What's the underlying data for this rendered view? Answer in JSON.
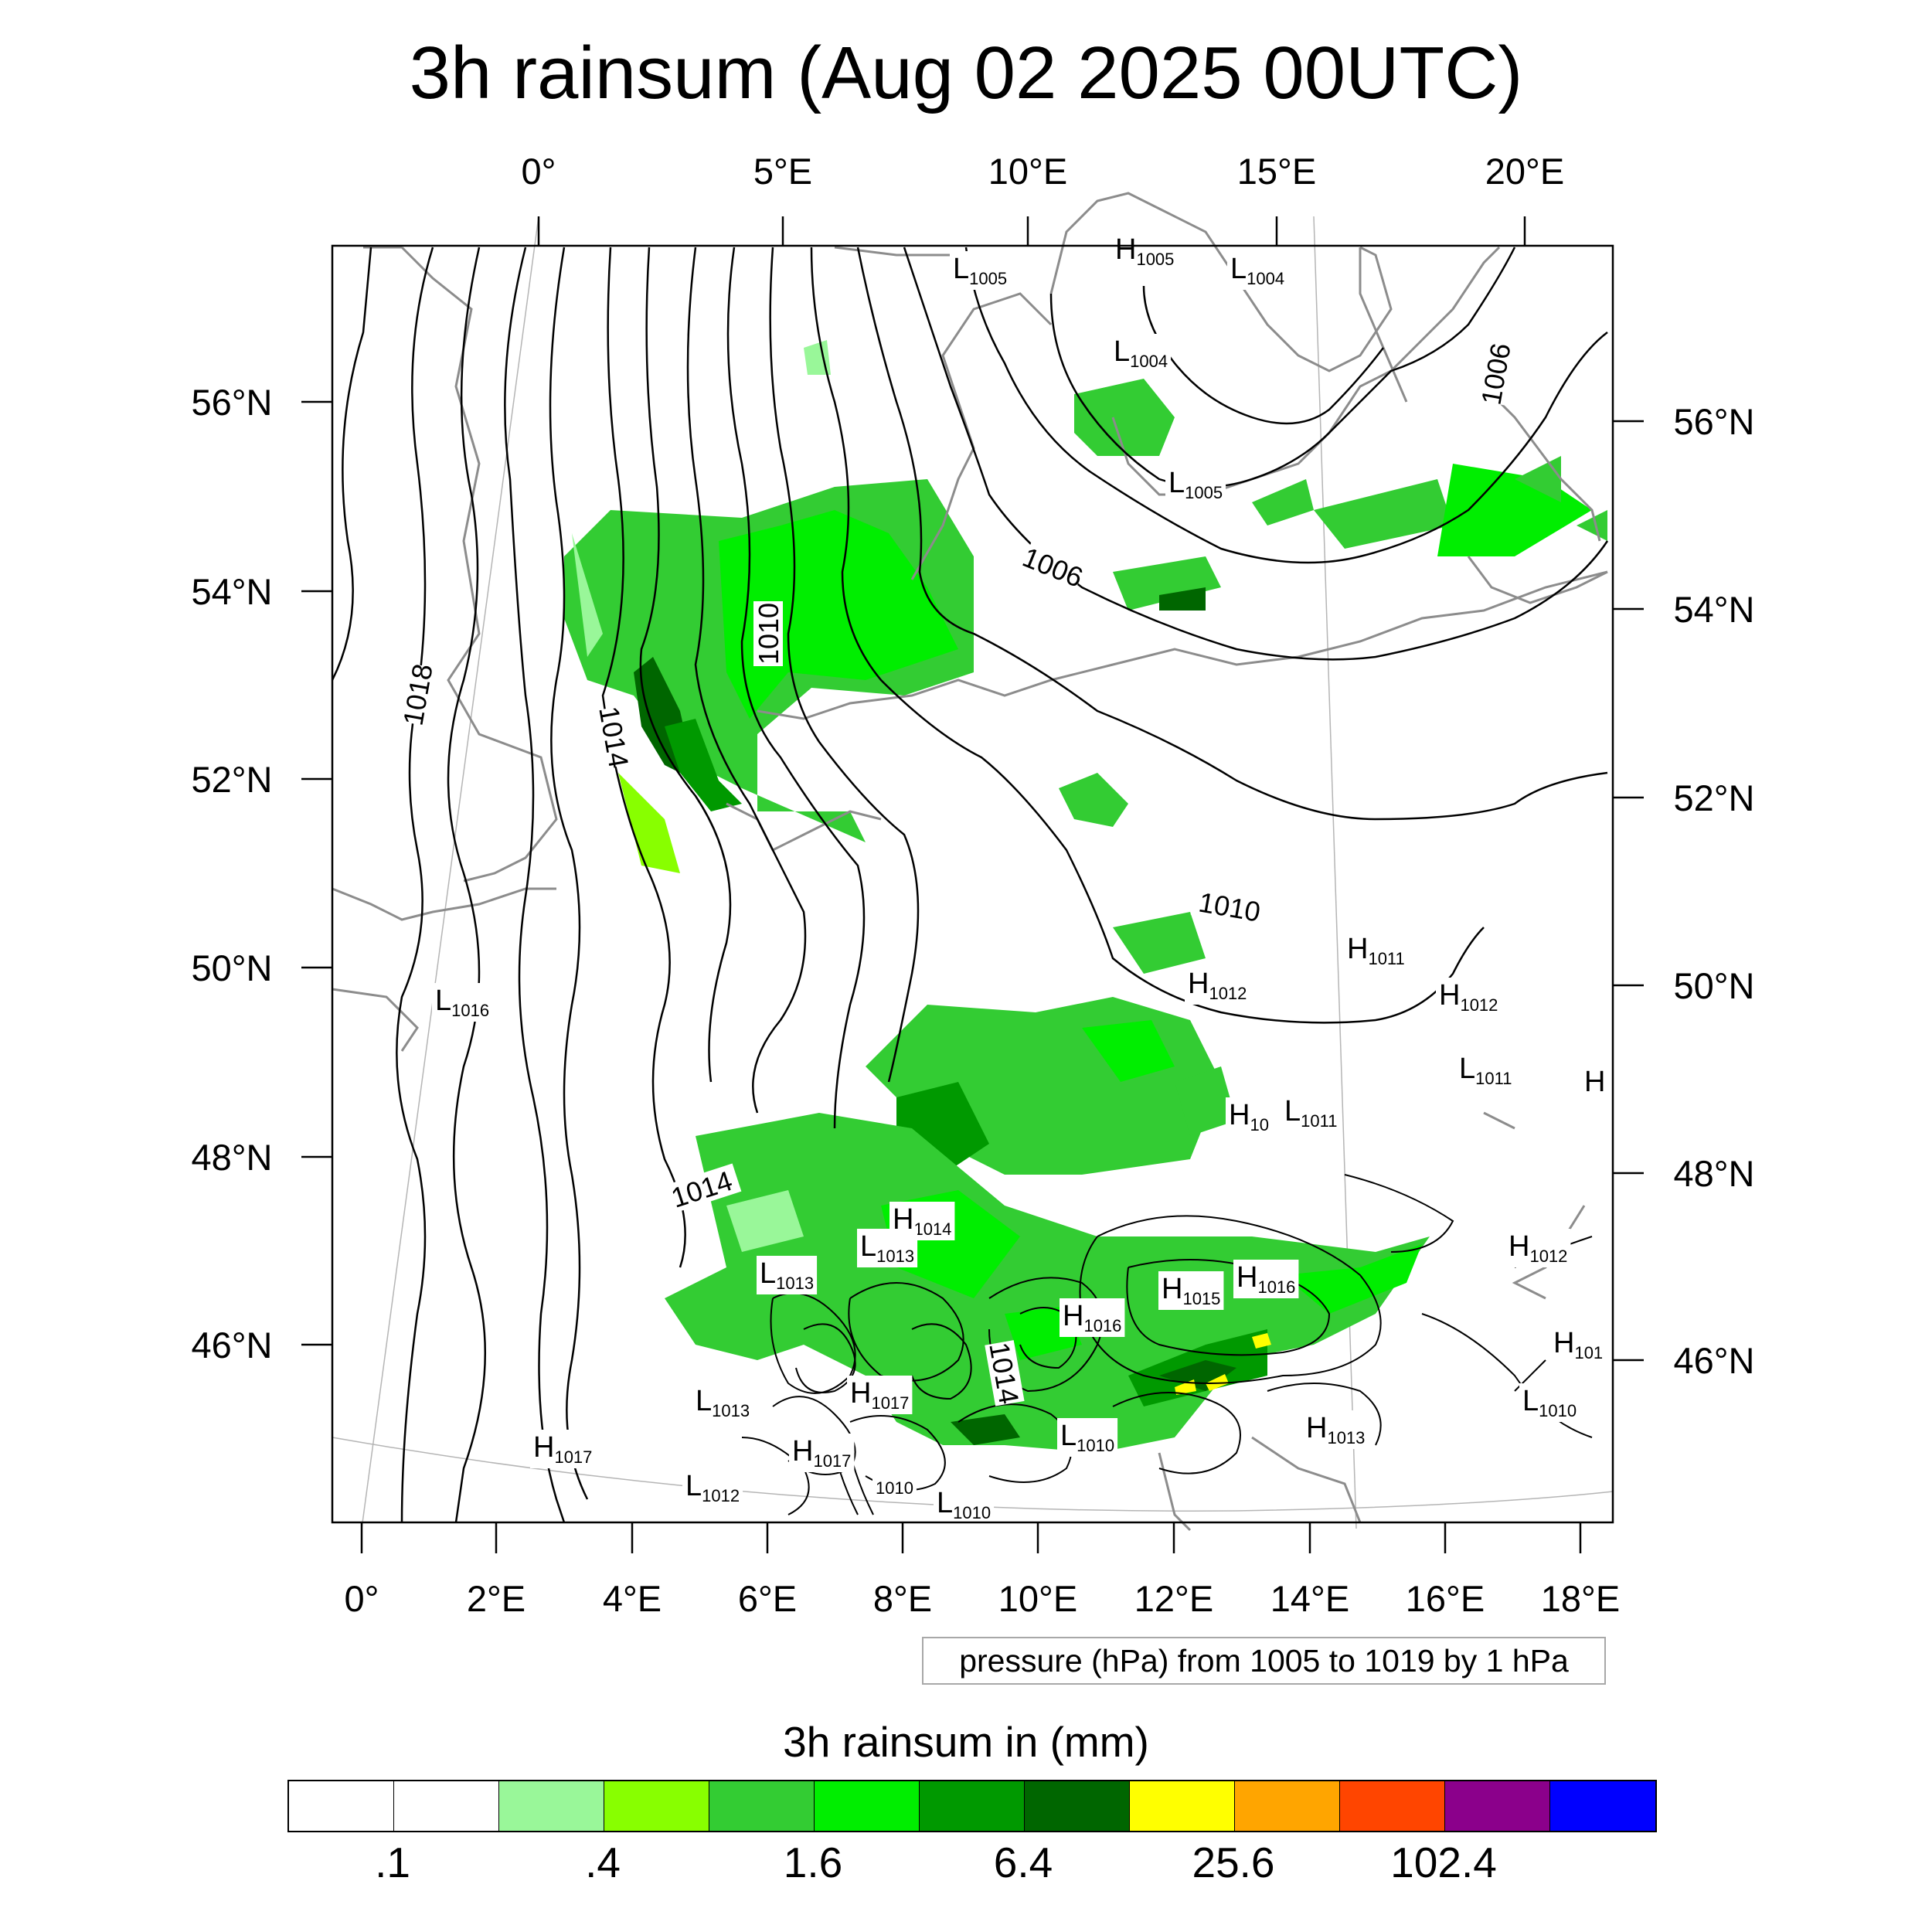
{
  "title": "3h rainsum (Aug 02 2025 00UTC)",
  "axes": {
    "top_lon_labels": [
      "0°",
      "5°E",
      "10°E",
      "15°E",
      "20°E"
    ],
    "bottom_lon_labels": [
      "0°",
      "2°E",
      "4°E",
      "6°E",
      "8°E",
      "10°E",
      "12°E",
      "14°E",
      "16°E",
      "18°E"
    ],
    "left_lat_labels": [
      "56°N",
      "54°N",
      "52°N",
      "50°N",
      "48°N",
      "46°N"
    ],
    "right_lat_labels": [
      "56°N",
      "54°N",
      "52°N",
      "50°N",
      "48°N",
      "46°N"
    ]
  },
  "contour_labels": [
    "1018",
    "1014",
    "1010",
    "1006",
    "1006",
    "1010",
    "1014",
    "1014"
  ],
  "pressure_centers": [
    {
      "type": "L",
      "value": "1005"
    },
    {
      "type": "H",
      "value": "1005"
    },
    {
      "type": "L",
      "value": "1004"
    },
    {
      "type": "L",
      "value": "1004"
    },
    {
      "type": "L",
      "value": "1005"
    },
    {
      "type": "L",
      "value": "1016"
    },
    {
      "type": "H",
      "value": "1011"
    },
    {
      "type": "H",
      "value": "1012"
    },
    {
      "type": "H",
      "value": "1012"
    },
    {
      "type": "L",
      "value": "1011"
    },
    {
      "type": "H",
      "value": ""
    },
    {
      "type": "H",
      "value": "10"
    },
    {
      "type": "L",
      "value": "1011"
    },
    {
      "type": "H",
      "value": "1014"
    },
    {
      "type": "L",
      "value": "1013"
    },
    {
      "type": "L",
      "value": "1013"
    },
    {
      "type": "H",
      "value": "1015"
    },
    {
      "type": "H",
      "value": "1016"
    },
    {
      "type": "H",
      "value": "1016"
    },
    {
      "type": "H",
      "value": "1012"
    },
    {
      "type": "H",
      "value": "101"
    },
    {
      "type": "L",
      "value": "1013"
    },
    {
      "type": "H",
      "value": "1017"
    },
    {
      "type": "L",
      "value": "1010"
    },
    {
      "type": "H",
      "value": "1017"
    },
    {
      "type": "H",
      "value": "1017"
    },
    {
      "type": "H",
      "value": "1013"
    },
    {
      "type": "L",
      "value": "1010"
    },
    {
      "type": "L",
      "value": "1012"
    },
    {
      "type": "",
      "value": "1010"
    },
    {
      "type": "L",
      "value": "1010"
    }
  ],
  "pressure_info": "pressure (hPa) from 1005 to 1019 by 1 hPa",
  "colorbar": {
    "title": "3h rainsum in (mm)",
    "colors": [
      "#ffffff",
      "#ffffff",
      "#99f799",
      "#88ff00",
      "#33cc33",
      "#00ee00",
      "#009900",
      "#006600",
      "#ffff00",
      "#ffa500",
      "#ff4500",
      "#8b008b",
      "#0000ff"
    ],
    "tick_labels": [
      ".1",
      ".4",
      "1.6",
      "6.4",
      "25.6",
      "102.4"
    ]
  }
}
